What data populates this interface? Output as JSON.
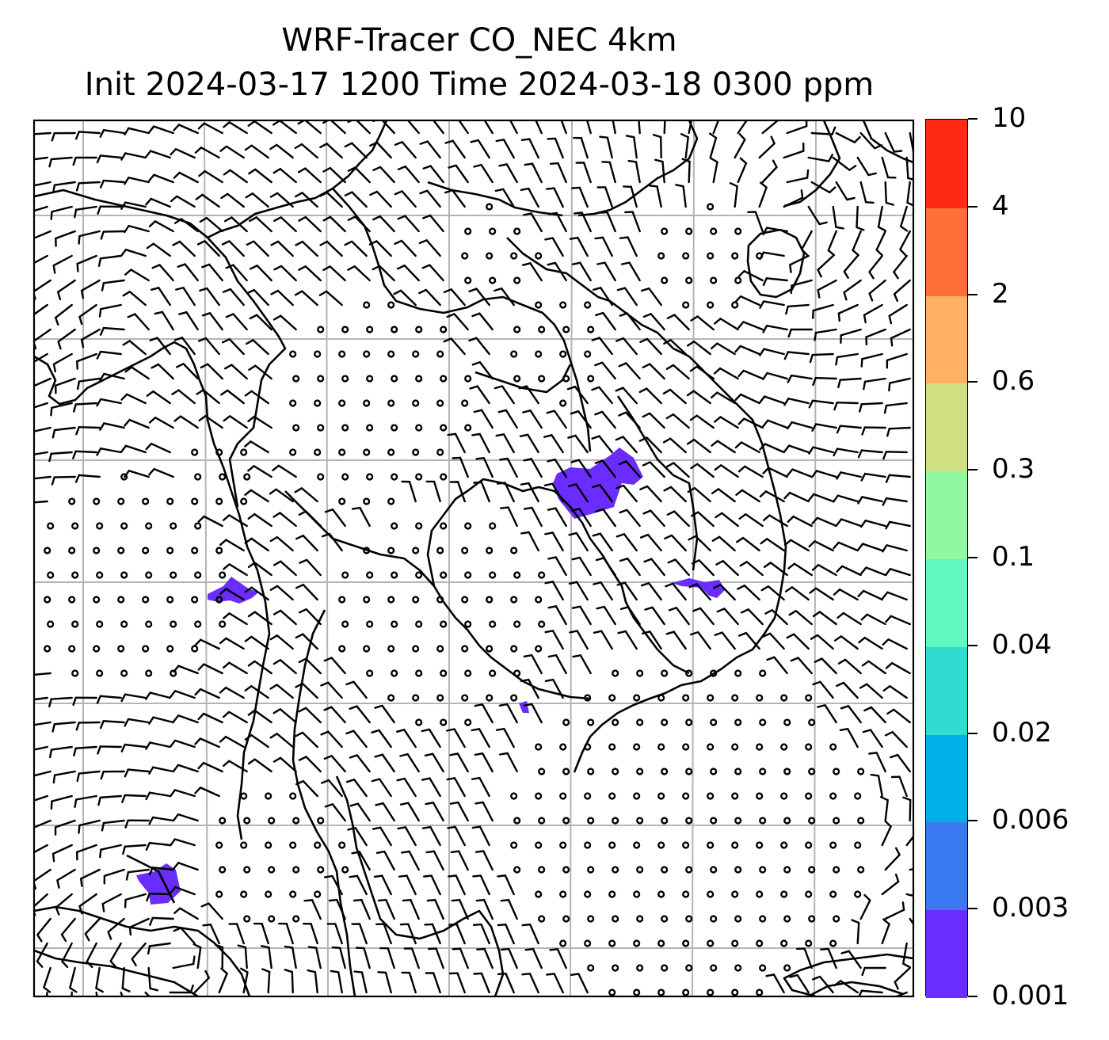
{
  "title": {
    "line1": "WRF-Tracer CO_NEC 4km",
    "line2": "Init 2024-03-17 1200 Time 2024-03-18 0300 ppm"
  },
  "colorbar": {
    "labels": [
      "0.001",
      "0.003",
      "0.006",
      "0.02",
      "0.04",
      "0.1",
      "0.3",
      "0.6",
      "2",
      "4",
      "10"
    ],
    "colors": [
      "#6a2cff",
      "#3a78f0",
      "#00b0e8",
      "#30dcd0",
      "#60f8c0",
      "#90f8a0",
      "#d0e080",
      "#ffb060",
      "#ff7038",
      "#ff2a14"
    ]
  },
  "map": {
    "tracer_color": "#6a2cff",
    "line_color": "#000000",
    "grid_color": "#b4b4b4",
    "wind_barbs": "wind-barb-field",
    "plume_count": 5
  }
}
